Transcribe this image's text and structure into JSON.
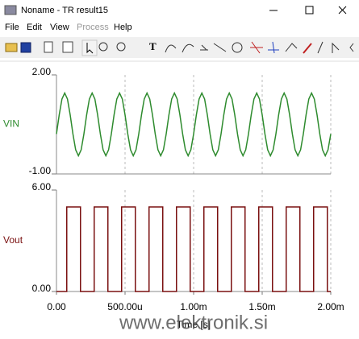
{
  "window": {
    "title": "Noname - TR result15"
  },
  "menu": [
    "File",
    "Edit",
    "View",
    "Process",
    "Help"
  ],
  "watermark": "www.elektronik.si",
  "chart_data": [
    {
      "type": "line",
      "ylabel": "VIN",
      "color": "#2e8b2e",
      "xlim": [
        0,
        0.002
      ],
      "xticks": [
        0,
        0.0005,
        0.001,
        0.0015,
        0.002
      ],
      "ylim": [
        -1,
        2
      ],
      "yticks": [
        {
          "value": 2,
          "label": "2.00"
        },
        {
          "value": -1,
          "label": "-1.00"
        }
      ],
      "x": [
        0,
        2e-05,
        4e-05,
        6e-05,
        8e-05,
        0.0001,
        0.00012,
        0.00014,
        0.00016,
        0.00018,
        0.0002,
        0.00022,
        0.00024,
        0.00026,
        0.00028,
        0.0003,
        0.00032,
        0.00034,
        0.00036,
        0.00038,
        0.0004,
        0.00042,
        0.00044,
        0.00046,
        0.00048,
        0.0005,
        0.00052,
        0.00054,
        0.00056,
        0.00058,
        0.0006,
        0.00062,
        0.00064,
        0.00066,
        0.00068,
        0.0007,
        0.00072,
        0.00074,
        0.00076,
        0.00078,
        0.0008,
        0.00082,
        0.00084,
        0.00086,
        0.00088,
        0.0009,
        0.00092,
        0.00094,
        0.00096,
        0.00098,
        0.001,
        0.00102,
        0.00104,
        0.00106,
        0.00108,
        0.0011,
        0.00112,
        0.00114,
        0.00116,
        0.00118,
        0.0012,
        0.00122,
        0.00124,
        0.00126,
        0.00128,
        0.0013,
        0.00132,
        0.00134,
        0.00136,
        0.00138,
        0.0014,
        0.00142,
        0.00144,
        0.00146,
        0.00148,
        0.0015,
        0.00152,
        0.00154,
        0.00156,
        0.00158,
        0.0016,
        0.00162,
        0.00164,
        0.00166,
        0.00168,
        0.0017,
        0.00172,
        0.00174,
        0.00176,
        0.00178,
        0.0018,
        0.00182,
        0.00184,
        0.00186,
        0.00188,
        0.0019,
        0.00192,
        0.00194,
        0.00196,
        0.00198,
        0.002
      ],
      "values": [
        0.21,
        0.79,
        1.27,
        1.45,
        1.27,
        0.79,
        0.21,
        -0.27,
        -0.45,
        -0.27,
        0.21,
        0.79,
        1.27,
        1.45,
        1.27,
        0.79,
        0.21,
        -0.27,
        -0.45,
        -0.27,
        0.21,
        0.79,
        1.27,
        1.45,
        1.27,
        0.79,
        0.21,
        -0.27,
        -0.45,
        -0.27,
        0.21,
        0.79,
        1.27,
        1.45,
        1.27,
        0.79,
        0.21,
        -0.27,
        -0.45,
        -0.27,
        0.21,
        0.79,
        1.27,
        1.45,
        1.27,
        0.79,
        0.21,
        -0.27,
        -0.45,
        -0.27,
        0.21,
        0.79,
        1.27,
        1.45,
        1.27,
        0.79,
        0.21,
        -0.27,
        -0.45,
        -0.27,
        0.21,
        0.79,
        1.27,
        1.45,
        1.27,
        0.79,
        0.21,
        -0.27,
        -0.45,
        -0.27,
        0.21,
        0.79,
        1.27,
        1.45,
        1.27,
        0.79,
        0.21,
        -0.27,
        -0.45,
        -0.27,
        0.21,
        0.79,
        1.27,
        1.45,
        1.27,
        0.79,
        0.21,
        -0.27,
        -0.45,
        -0.27,
        0.21,
        0.79,
        1.27,
        1.45,
        1.27,
        0.79,
        0.21,
        -0.27,
        -0.45,
        -0.27,
        0.21
      ]
    },
    {
      "type": "line",
      "ylabel": "Vout",
      "xlabel": "Time [s]",
      "color": "#7a1010",
      "xlim": [
        0,
        0.002
      ],
      "xticks": [
        {
          "value": 0,
          "label": "0.00"
        },
        {
          "value": 0.0005,
          "label": "500.00u"
        },
        {
          "value": 0.001,
          "label": "1.00m"
        },
        {
          "value": 0.0015,
          "label": "1.50m"
        },
        {
          "value": 0.002,
          "label": "2.00m"
        }
      ],
      "ylim": [
        0,
        6
      ],
      "yticks": [
        {
          "value": 6,
          "label": "6.00"
        },
        {
          "value": 0,
          "label": "0.00"
        }
      ],
      "x": [
        0,
        7.5e-05,
        7.5e-05,
        0.000175,
        0.000175,
        0.000275,
        0.000275,
        0.000375,
        0.000375,
        0.000475,
        0.000475,
        0.000575,
        0.000575,
        0.000675,
        0.000675,
        0.000775,
        0.000775,
        0.000875,
        0.000875,
        0.000975,
        0.000975,
        0.001075,
        0.001075,
        0.001175,
        0.001175,
        0.001275,
        0.001275,
        0.001375,
        0.001375,
        0.001475,
        0.001475,
        0.001575,
        0.001575,
        0.001675,
        0.001675,
        0.001775,
        0.001775,
        0.001875,
        0.001875,
        0.001975,
        0.001975,
        0.002
      ],
      "values": [
        0,
        0,
        5,
        5,
        0,
        0,
        5,
        5,
        0,
        0,
        5,
        5,
        0,
        0,
        5,
        5,
        0,
        0,
        5,
        5,
        0,
        0,
        5,
        5,
        0,
        0,
        5,
        5,
        0,
        0,
        5,
        5,
        0,
        0,
        5,
        5,
        0,
        0,
        5,
        5,
        0,
        0
      ]
    }
  ]
}
